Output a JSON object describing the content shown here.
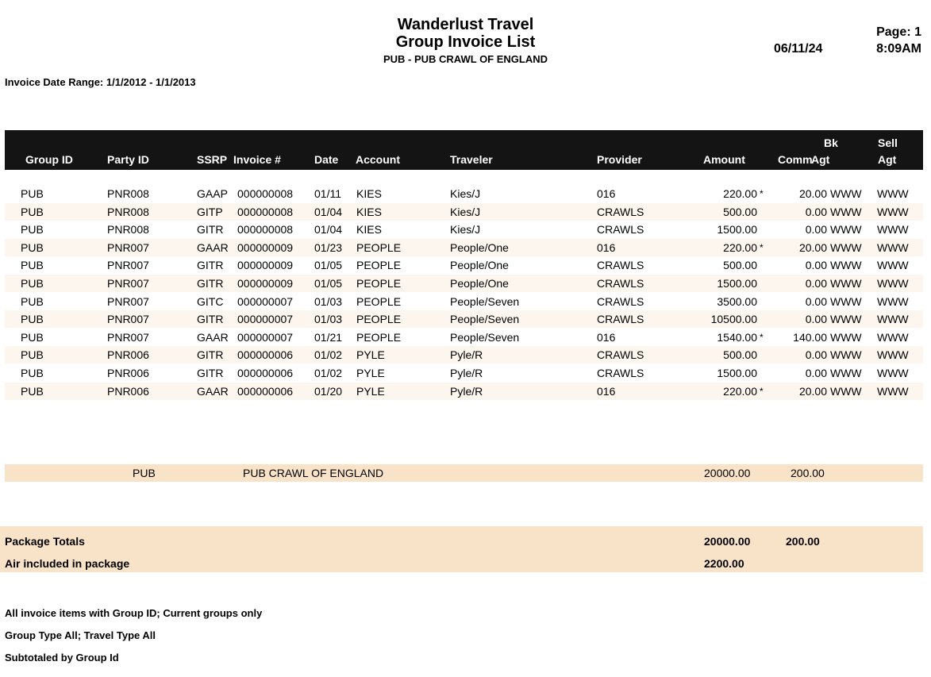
{
  "header": {
    "company": "Wanderlust Travel",
    "report_title": "Group Invoice List",
    "group_title": "PUB - PUB CRAWL OF ENGLAND",
    "page": "Page: 1",
    "date": "06/11/24",
    "time": "8:09AM"
  },
  "date_range": "Invoice Date Range: 1/1/2012 - 1/1/2013",
  "columns": {
    "group_id": "Group ID",
    "party_id": "Party ID",
    "ssrp": "SSRP",
    "invoice": "Invoice #",
    "date": "Date",
    "account": "Account",
    "traveler": "Traveler",
    "provider": "Provider",
    "amount": "Amount",
    "comm": "Comm",
    "bk_agt_top": "Bk",
    "bk_agt_bottom": "Agt",
    "sell_agt_top": "Sell",
    "sell_agt_bottom": "Agt"
  },
  "rows": [
    {
      "group_id": "PUB",
      "party_id": "PNR008",
      "ssrp": "GAAP",
      "invoice": "000000008",
      "date": "01/11",
      "account": "KIES",
      "traveler": "Kies/J",
      "provider": "016",
      "amount": "220.00",
      "flag": "*",
      "comm": "20.00",
      "bk_agt": "WWW",
      "sell_agt": "WWW"
    },
    {
      "group_id": "PUB",
      "party_id": "PNR008",
      "ssrp": "GITP",
      "invoice": "000000008",
      "date": "01/04",
      "account": "KIES",
      "traveler": "Kies/J",
      "provider": "CRAWLS",
      "amount": "500.00",
      "flag": "",
      "comm": "0.00",
      "bk_agt": "WWW",
      "sell_agt": "WWW"
    },
    {
      "group_id": "PUB",
      "party_id": "PNR008",
      "ssrp": "GITR",
      "invoice": "000000008",
      "date": "01/04",
      "account": "KIES",
      "traveler": "Kies/J",
      "provider": "CRAWLS",
      "amount": "1500.00",
      "flag": "",
      "comm": "0.00",
      "bk_agt": "WWW",
      "sell_agt": "WWW"
    },
    {
      "group_id": "PUB",
      "party_id": "PNR007",
      "ssrp": "GAAR",
      "invoice": "000000009",
      "date": "01/23",
      "account": "PEOPLE",
      "traveler": "People/One",
      "provider": "016",
      "amount": "220.00",
      "flag": "*",
      "comm": "20.00",
      "bk_agt": "WWW",
      "sell_agt": "WWW"
    },
    {
      "group_id": "PUB",
      "party_id": "PNR007",
      "ssrp": "GITR",
      "invoice": "000000009",
      "date": "01/05",
      "account": "PEOPLE",
      "traveler": "People/One",
      "provider": "CRAWLS",
      "amount": "500.00",
      "flag": "",
      "comm": "0.00",
      "bk_agt": "WWW",
      "sell_agt": "WWW"
    },
    {
      "group_id": "PUB",
      "party_id": "PNR007",
      "ssrp": "GITR",
      "invoice": "000000009",
      "date": "01/05",
      "account": "PEOPLE",
      "traveler": "People/One",
      "provider": "CRAWLS",
      "amount": "1500.00",
      "flag": "",
      "comm": "0.00",
      "bk_agt": "WWW",
      "sell_agt": "WWW"
    },
    {
      "group_id": "PUB",
      "party_id": "PNR007",
      "ssrp": "GITC",
      "invoice": "000000007",
      "date": "01/03",
      "account": "PEOPLE",
      "traveler": "People/Seven",
      "provider": "CRAWLS",
      "amount": "3500.00",
      "flag": "",
      "comm": "0.00",
      "bk_agt": "WWW",
      "sell_agt": "WWW"
    },
    {
      "group_id": "PUB",
      "party_id": "PNR007",
      "ssrp": "GITR",
      "invoice": "000000007",
      "date": "01/03",
      "account": "PEOPLE",
      "traveler": "People/Seven",
      "provider": "CRAWLS",
      "amount": "10500.00",
      "flag": "",
      "comm": "0.00",
      "bk_agt": "WWW",
      "sell_agt": "WWW"
    },
    {
      "group_id": "PUB",
      "party_id": "PNR007",
      "ssrp": "GAAR",
      "invoice": "000000007",
      "date": "01/21",
      "account": "PEOPLE",
      "traveler": "People/Seven",
      "provider": "016",
      "amount": "1540.00",
      "flag": "*",
      "comm": "140.00",
      "bk_agt": "WWW",
      "sell_agt": "WWW"
    },
    {
      "group_id": "PUB",
      "party_id": "PNR006",
      "ssrp": "GITR",
      "invoice": "000000006",
      "date": "01/02",
      "account": "PYLE",
      "traveler": "Pyle/R",
      "provider": "CRAWLS",
      "amount": "500.00",
      "flag": "",
      "comm": "0.00",
      "bk_agt": "WWW",
      "sell_agt": "WWW"
    },
    {
      "group_id": "PUB",
      "party_id": "PNR006",
      "ssrp": "GITR",
      "invoice": "000000006",
      "date": "01/02",
      "account": "PYLE",
      "traveler": "Pyle/R",
      "provider": "CRAWLS",
      "amount": "1500.00",
      "flag": "",
      "comm": "0.00",
      "bk_agt": "WWW",
      "sell_agt": "WWW"
    },
    {
      "group_id": "PUB",
      "party_id": "PNR006",
      "ssrp": "GAAR",
      "invoice": "000000006",
      "date": "01/20",
      "account": "PYLE",
      "traveler": "Pyle/R",
      "provider": "016",
      "amount": "220.00",
      "flag": "*",
      "comm": "20.00",
      "bk_agt": "WWW",
      "sell_agt": "WWW"
    }
  ],
  "subtotal": {
    "group_id": "PUB",
    "name": "PUB CRAWL OF ENGLAND",
    "amount": "20000.00",
    "comm": "200.00"
  },
  "totals": {
    "package_label": "Package Totals",
    "package_amount": "20000.00",
    "package_comm": "200.00",
    "air_label": "Air included in package",
    "air_amount": "2200.00"
  },
  "footer": {
    "line1": "All invoice items with Group ID; Current groups only",
    "line2": "Group Type All; Travel Type All",
    "line3": "Subtotaled by Group Id"
  }
}
